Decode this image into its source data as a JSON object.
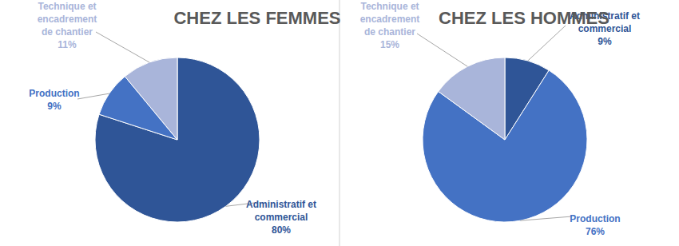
{
  "chart_data": [
    {
      "type": "pie",
      "title": "CHEZ LES FEMMES",
      "categories": [
        "Administratif et commercial",
        "Production",
        "Technique et encadrement de chantier"
      ],
      "values": [
        80,
        9,
        11
      ],
      "value_labels": [
        "80%",
        "9%",
        "11%"
      ],
      "colors": [
        "#2f5597",
        "#4472c4",
        "#a9b5da"
      ],
      "data_labels": true
    },
    {
      "type": "pie",
      "title": "CHEZ LES HOMMES",
      "categories": [
        "Administratif et commercial",
        "Production",
        "Technique et encadrement de chantier"
      ],
      "values": [
        9,
        76,
        15
      ],
      "value_labels": [
        "9%",
        "76%",
        "15%"
      ],
      "colors": [
        "#2f5597",
        "#4472c4",
        "#a9b5da"
      ],
      "data_labels": true
    }
  ]
}
